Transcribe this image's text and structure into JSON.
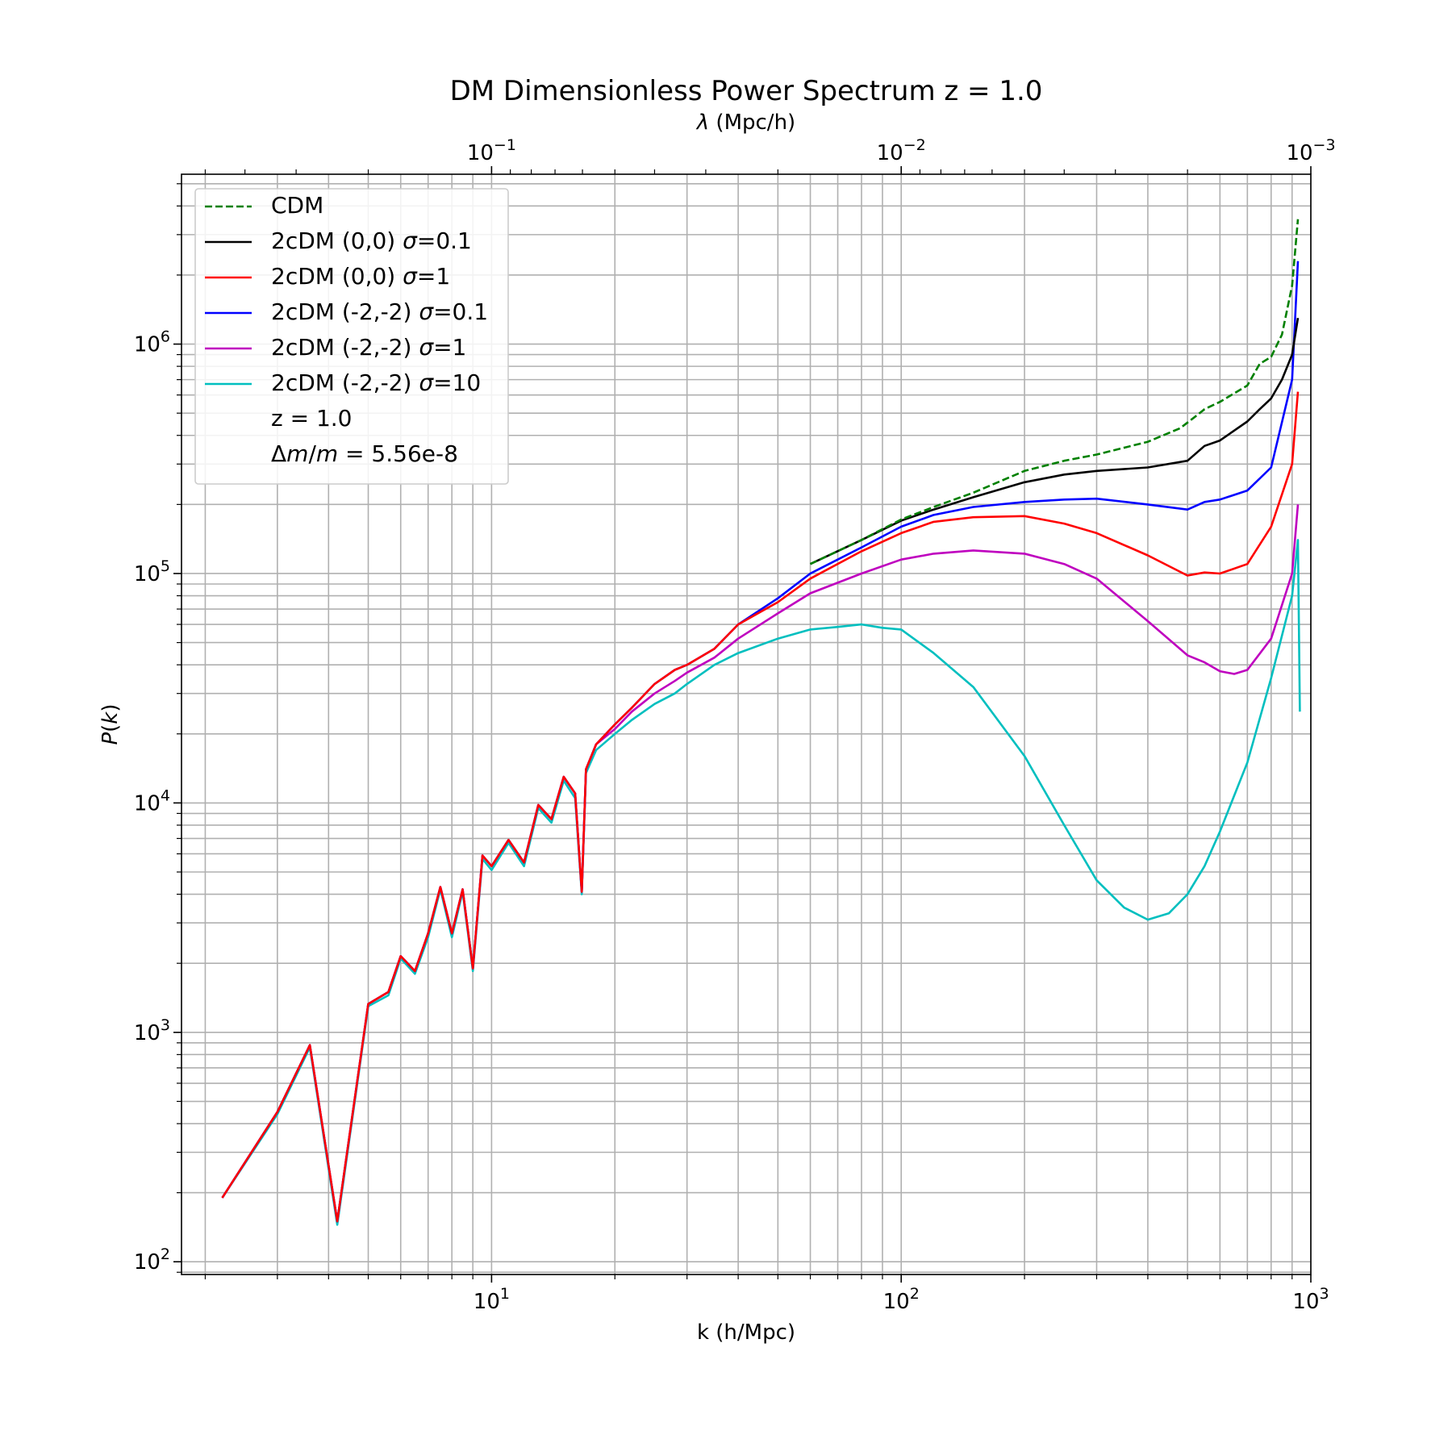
{
  "chart_data": {
    "type": "line",
    "title": "DM Dimensionless Power Spectrum z = 1.0",
    "xlabel": "k (h/Mpc)",
    "ylabel": "P(k)",
    "secondary_xlabel": "λ (Mpc/h)",
    "xscale": "log",
    "yscale": "log",
    "xlim": [
      1.75,
      1000
    ],
    "ylim": [
      88,
      5500000
    ],
    "grid": true,
    "legend_position": "top-left",
    "x_ticks": [
      {
        "value": 10,
        "label": "10",
        "exp": "1"
      },
      {
        "value": 100,
        "label": "10",
        "exp": "2"
      },
      {
        "value": 1000,
        "label": "10",
        "exp": "3"
      }
    ],
    "y_ticks": [
      {
        "value": 100,
        "label": "10",
        "exp": "2"
      },
      {
        "value": 1000,
        "label": "10",
        "exp": "3"
      },
      {
        "value": 10000,
        "label": "10",
        "exp": "4"
      },
      {
        "value": 100000,
        "label": "10",
        "exp": "5"
      },
      {
        "value": 1000000,
        "label": "10",
        "exp": "6"
      }
    ],
    "top_ticks": [
      {
        "value": 0.1,
        "label": "10",
        "exp": "−1"
      },
      {
        "value": 0.01,
        "label": "10",
        "exp": "−2"
      },
      {
        "value": 0.001,
        "label": "10",
        "exp": "−3"
      }
    ],
    "legend_extra": [
      "z = 1.0",
      "Δm/m = 5.56e-8"
    ],
    "series": [
      {
        "name": "CDM",
        "color": "#008000",
        "dash": true,
        "x": [
          60,
          80,
          100,
          120,
          150,
          200,
          250,
          300,
          400,
          480,
          520,
          550,
          600,
          700,
          750,
          800,
          850,
          900,
          930
        ],
        "y": [
          110000,
          140000,
          172000,
          195000,
          225000,
          280000,
          310000,
          330000,
          375000,
          430000,
          480000,
          520000,
          560000,
          660000,
          820000,
          880000,
          1100000,
          1800000,
          3500000
        ]
      },
      {
        "name": "2cDM (0,0) σ=0.1",
        "color": "#000000",
        "x": [
          60,
          80,
          100,
          120,
          150,
          200,
          250,
          300,
          400,
          500,
          550,
          600,
          700,
          750,
          800,
          850,
          900,
          930
        ],
        "y": [
          110000,
          140000,
          170000,
          190000,
          215000,
          250000,
          270000,
          280000,
          290000,
          310000,
          360000,
          380000,
          460000,
          520000,
          580000,
          700000,
          900000,
          1300000
        ]
      },
      {
        "name": "2cDM (0,0) σ=1",
        "color": "#ff0000",
        "x": [
          2.2,
          3,
          3.6,
          4.2,
          5,
          5.6,
          6,
          6.5,
          7,
          7.5,
          8,
          8.5,
          9,
          9.5,
          10,
          11,
          12,
          13,
          14,
          15,
          16,
          16.6,
          17,
          18,
          20,
          22,
          25,
          28,
          30,
          35,
          40,
          50,
          60,
          80,
          100,
          120,
          150,
          200,
          250,
          300,
          400,
          500,
          550,
          600,
          700,
          800,
          900,
          930
        ],
        "y": [
          190,
          450,
          880,
          150,
          1330,
          1500,
          2150,
          1850,
          2700,
          4300,
          2700,
          4200,
          1900,
          5900,
          5300,
          6900,
          5500,
          9800,
          8500,
          13000,
          11000,
          4100,
          14000,
          18000,
          22000,
          26000,
          33000,
          38000,
          40000,
          47000,
          60000,
          75000,
          95000,
          125000,
          150000,
          168000,
          176000,
          178000,
          165000,
          150000,
          120000,
          98000,
          101000,
          100000,
          110000,
          160000,
          300000,
          620000
        ]
      },
      {
        "name": "2cDM (-2,-2) σ=0.1",
        "color": "#0000ff",
        "x": [
          2.2,
          3,
          3.6,
          4.2,
          5,
          5.6,
          6,
          6.5,
          7,
          7.5,
          8,
          8.5,
          9,
          9.5,
          10,
          11,
          12,
          13,
          14,
          15,
          16,
          16.6,
          17,
          18,
          20,
          22,
          25,
          28,
          30,
          35,
          40,
          50,
          60,
          80,
          100,
          120,
          150,
          200,
          250,
          300,
          400,
          500,
          550,
          600,
          700,
          800,
          900,
          930
        ],
        "y": [
          190,
          450,
          880,
          150,
          1330,
          1500,
          2150,
          1850,
          2700,
          4300,
          2700,
          4200,
          1900,
          5900,
          5300,
          6900,
          5500,
          9800,
          8500,
          13000,
          11000,
          4100,
          14000,
          18000,
          22000,
          26000,
          33000,
          38000,
          40000,
          47000,
          60000,
          78000,
          100000,
          130000,
          160000,
          180000,
          195000,
          205000,
          210000,
          212000,
          200000,
          190000,
          205000,
          210000,
          230000,
          290000,
          700000,
          2300000
        ]
      },
      {
        "name": "2cDM (-2,-2) σ=1",
        "color": "#bf00bf",
        "x": [
          2.2,
          3,
          3.6,
          4.2,
          5,
          5.6,
          6,
          6.5,
          7,
          7.5,
          8,
          8.5,
          9,
          9.5,
          10,
          11,
          12,
          13,
          14,
          15,
          16,
          16.6,
          17,
          18,
          20,
          22,
          25,
          28,
          30,
          35,
          40,
          50,
          60,
          80,
          100,
          120,
          150,
          200,
          250,
          300,
          400,
          500,
          550,
          600,
          650,
          700,
          800,
          900,
          930
        ],
        "y": [
          190,
          450,
          880,
          150,
          1330,
          1500,
          2150,
          1850,
          2700,
          4300,
          2700,
          4200,
          1900,
          5900,
          5300,
          6900,
          5500,
          9800,
          8500,
          13000,
          11000,
          4100,
          14000,
          18000,
          21000,
          25000,
          30000,
          34000,
          37000,
          43000,
          52000,
          67000,
          82000,
          100000,
          115000,
          122000,
          126000,
          122000,
          110000,
          95000,
          62000,
          44000,
          41000,
          37500,
          36500,
          38000,
          52000,
          100000,
          200000
        ]
      },
      {
        "name": "2cDM (-2,-2) σ=10",
        "color": "#00bfbf",
        "x": [
          2.2,
          3,
          3.6,
          4.2,
          5,
          5.6,
          6,
          6.5,
          7,
          7.5,
          8,
          8.5,
          9,
          9.5,
          10,
          11,
          12,
          13,
          14,
          15,
          16,
          16.6,
          17,
          18,
          20,
          22,
          25,
          28,
          30,
          35,
          40,
          50,
          60,
          70,
          80,
          90,
          100,
          120,
          150,
          200,
          250,
          300,
          350,
          400,
          450,
          500,
          550,
          600,
          700,
          800,
          900,
          930,
          940
        ],
        "y": [
          190,
          440,
          860,
          145,
          1300,
          1450,
          2100,
          1800,
          2600,
          4200,
          2600,
          4100,
          1850,
          5700,
          5100,
          6700,
          5300,
          9500,
          8200,
          12500,
          10500,
          4000,
          13500,
          17000,
          20000,
          23000,
          27000,
          30000,
          33000,
          40000,
          45000,
          52000,
          57000,
          58500,
          60000,
          58000,
          57000,
          45000,
          32000,
          16000,
          8000,
          4600,
          3500,
          3100,
          3300,
          4000,
          5300,
          7500,
          15000,
          35000,
          80000,
          140000,
          25000
        ]
      }
    ]
  }
}
